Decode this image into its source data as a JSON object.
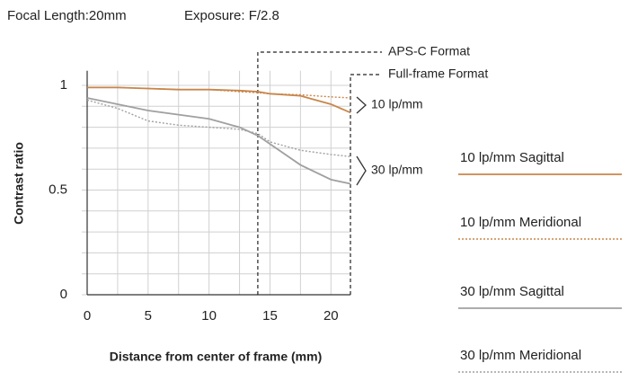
{
  "chart_data": {
    "type": "line",
    "header": [
      "Focal Length:20mm",
      "Exposure: F/2.8"
    ],
    "ylabel": "Contrast ratio",
    "xlabel": "Distance from center of frame (mm)",
    "xlim": [
      0,
      21.6
    ],
    "xticks": [
      0,
      5,
      10,
      15,
      20
    ],
    "xminorticks": [
      2.5,
      7.5,
      12.5,
      17.5
    ],
    "ylim": [
      0,
      1.07
    ],
    "yticks": [
      0,
      0.5,
      1
    ],
    "yminorticks": [
      0.1,
      0.2,
      0.3,
      0.4,
      0.6,
      0.7,
      0.8,
      0.9
    ],
    "grid": true,
    "x": [
      0,
      2.5,
      5,
      7.5,
      10,
      12.5,
      14,
      15,
      17.5,
      20,
      21.6
    ],
    "series": [
      {
        "name": "10 lp/mm Sagittal",
        "color": "#c8864a",
        "style": "solid",
        "values": [
          0.99,
          0.99,
          0.985,
          0.98,
          0.98,
          0.975,
          0.97,
          0.96,
          0.95,
          0.91,
          0.87
        ]
      },
      {
        "name": "10 lp/mm Meridional",
        "color": "#c8864a",
        "style": "dotted",
        "values": [
          0.99,
          0.99,
          0.985,
          0.98,
          0.98,
          0.97,
          0.965,
          0.96,
          0.955,
          0.945,
          0.94
        ]
      },
      {
        "name": "30 lp/mm Sagittal",
        "color": "#a0a0a0",
        "style": "solid",
        "values": [
          0.94,
          0.91,
          0.88,
          0.86,
          0.84,
          0.8,
          0.76,
          0.72,
          0.62,
          0.55,
          0.53
        ]
      },
      {
        "name": "30 lp/mm Meridional",
        "color": "#a0a0a0",
        "style": "dotted",
        "values": [
          0.93,
          0.89,
          0.83,
          0.81,
          0.8,
          0.79,
          0.77,
          0.73,
          0.69,
          0.67,
          0.66
        ]
      }
    ],
    "vlines": [
      {
        "x": 14,
        "label": "APS-C Format"
      },
      {
        "x": 21.6,
        "label": "Full-frame Format"
      }
    ],
    "annotations": [
      "10 lp/mm",
      "30 lp/mm"
    ]
  }
}
